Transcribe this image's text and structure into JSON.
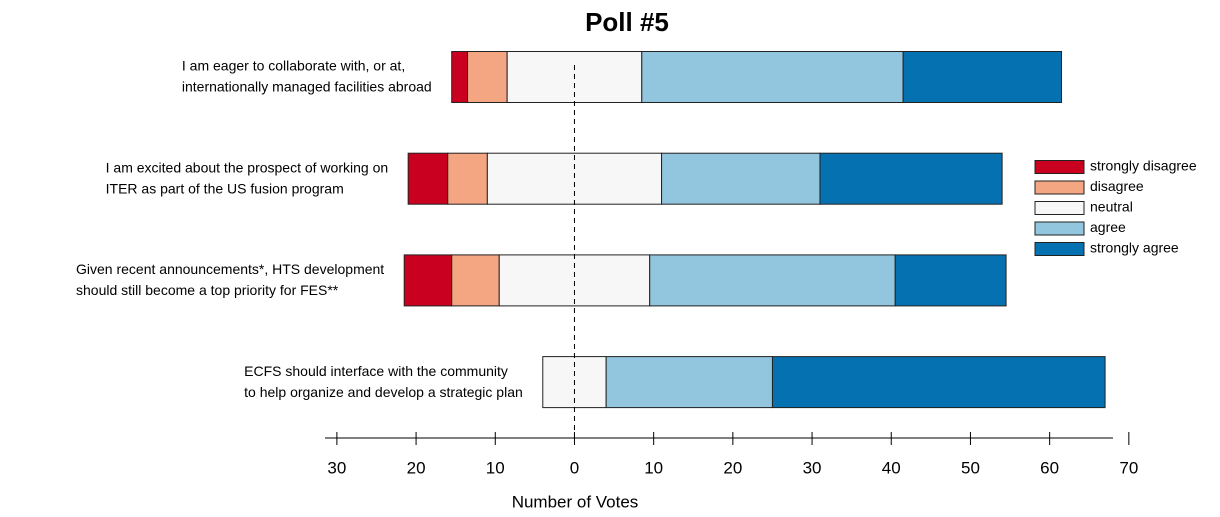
{
  "chart_data": {
    "type": "diverging_bar",
    "title": "Poll #5",
    "xlabel": "Number of Votes",
    "categories": [
      [
        "I am eager to collaborate with, or at,",
        "internationally managed facilities abroad"
      ],
      [
        "I am excited about the prospect of working on",
        "ITER as part of the US fusion program"
      ],
      [
        "Given recent announcements*, HTS development",
        "should still become a top priority for FES**"
      ],
      [
        "ECFS should interface with the community",
        "to help organize and develop a strategic plan"
      ]
    ],
    "series": [
      {
        "name": "strongly disagree",
        "color": "#ca0020",
        "values": [
          2,
          5,
          6,
          0
        ]
      },
      {
        "name": "disagree",
        "color": "#f4a582",
        "values": [
          5,
          5,
          6,
          0
        ]
      },
      {
        "name": "neutral",
        "color": "#f7f7f7",
        "values": [
          17,
          22,
          19,
          8
        ]
      },
      {
        "name": "agree",
        "color": "#92c5de",
        "values": [
          33,
          20,
          31,
          21
        ]
      },
      {
        "name": "strongly agree",
        "color": "#0571b0",
        "values": [
          20,
          23,
          14,
          42
        ]
      }
    ],
    "xlim": [
      -31.5,
      68
    ],
    "xticks": [
      {
        "value": -30,
        "label": "30"
      },
      {
        "value": -20,
        "label": "20"
      },
      {
        "value": -10,
        "label": "10"
      },
      0,
      10,
      20,
      30,
      40,
      50,
      60,
      70
    ],
    "legend": "right"
  }
}
